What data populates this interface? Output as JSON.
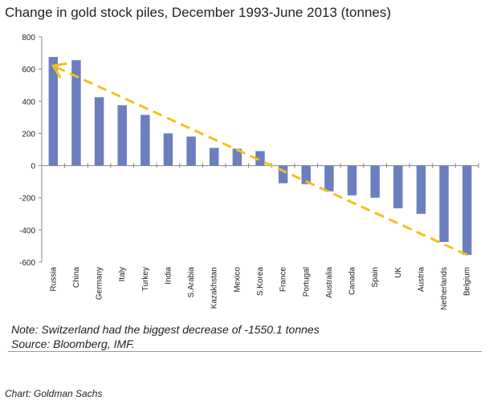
{
  "chart_data": {
    "type": "bar",
    "title": "Change in gold stock piles, December 1993-June 2013 (tonnes)",
    "categories": [
      "Russia",
      "China",
      "Germany",
      "Italy",
      "Turkey",
      "India",
      "S.Arabia",
      "Kazakhstan",
      "Mexico",
      "S.Korea",
      "France",
      "Portugal",
      "Australia",
      "Canada",
      "Spain",
      "UK",
      "Austria",
      "Netherlands",
      "Belgium"
    ],
    "values": [
      675,
      655,
      425,
      375,
      315,
      200,
      180,
      110,
      105,
      90,
      -110,
      -115,
      -160,
      -185,
      -200,
      -265,
      -300,
      -475,
      -555
    ],
    "ylim": [
      -600,
      800
    ],
    "yticks": [
      -600,
      -400,
      -200,
      0,
      200,
      400,
      600,
      800
    ],
    "xlabel": "",
    "ylabel": "",
    "bar_color": "#6b7fbf",
    "trend_arrow": {
      "color": "#f2c21b",
      "from_category": "Belgium",
      "to_category": "Russia",
      "from_value": -555,
      "to_value": 620
    }
  },
  "notes": {
    "note": "Note: Switzerland had the biggest decrease of -1550.1 tonnes",
    "source": "Source: Bloomberg, IMF."
  },
  "credit": "Chart: Goldman Sachs"
}
